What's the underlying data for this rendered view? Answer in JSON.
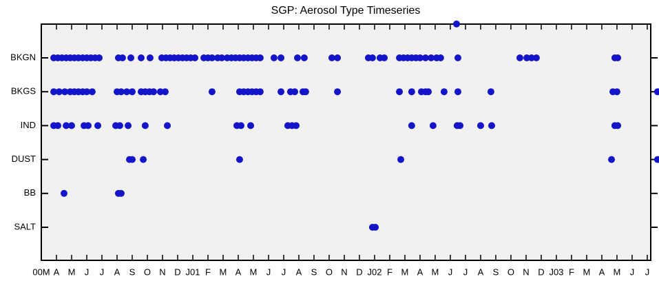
{
  "chart_data": {
    "type": "scatter",
    "title": "SGP: Aerosol Type Timeseries",
    "color": "#1414c8",
    "xlim": [
      2,
      42.23
    ],
    "xticks": [
      {
        "value": 2,
        "label": "00M"
      },
      {
        "value": 3,
        "label": "A"
      },
      {
        "value": 4,
        "label": "M"
      },
      {
        "value": 5,
        "label": "J"
      },
      {
        "value": 6,
        "label": "J"
      },
      {
        "value": 7,
        "label": "A"
      },
      {
        "value": 8,
        "label": "S"
      },
      {
        "value": 9,
        "label": "O"
      },
      {
        "value": 10,
        "label": "N"
      },
      {
        "value": 11,
        "label": "D"
      },
      {
        "value": 12,
        "label": "J01"
      },
      {
        "value": 13,
        "label": "F"
      },
      {
        "value": 14,
        "label": "M"
      },
      {
        "value": 15,
        "label": "A"
      },
      {
        "value": 16,
        "label": "M"
      },
      {
        "value": 17,
        "label": "J"
      },
      {
        "value": 18,
        "label": "J"
      },
      {
        "value": 19,
        "label": "A"
      },
      {
        "value": 20,
        "label": "S"
      },
      {
        "value": 21,
        "label": "O"
      },
      {
        "value": 22,
        "label": "N"
      },
      {
        "value": 23,
        "label": "D"
      },
      {
        "value": 24,
        "label": "J02"
      },
      {
        "value": 25,
        "label": "F"
      },
      {
        "value": 26,
        "label": "M"
      },
      {
        "value": 27,
        "label": "A"
      },
      {
        "value": 28,
        "label": "M"
      },
      {
        "value": 29,
        "label": "J"
      },
      {
        "value": 30,
        "label": "J"
      },
      {
        "value": 31,
        "label": "A"
      },
      {
        "value": 32,
        "label": "S"
      },
      {
        "value": 33,
        "label": "O"
      },
      {
        "value": 34,
        "label": "N"
      },
      {
        "value": 35,
        "label": "D"
      },
      {
        "value": 36,
        "label": "J03"
      },
      {
        "value": 37,
        "label": "F"
      },
      {
        "value": 38,
        "label": "M"
      },
      {
        "value": 39,
        "label": "A"
      },
      {
        "value": 40,
        "label": "M"
      },
      {
        "value": 41,
        "label": "J"
      },
      {
        "value": 42,
        "label": "J"
      }
    ],
    "rows": [
      {
        "name": null,
        "x": [
          29.41
        ]
      },
      {
        "name": "BKGN",
        "x": [
          2.82,
          3.09,
          3.36,
          3.64,
          3.91,
          4.18,
          4.45,
          4.73,
          5.0,
          5.27,
          5.55,
          5.82,
          7.09,
          7.36,
          7.91,
          8.59,
          9.18,
          9.95,
          10.23,
          10.5,
          10.77,
          11.05,
          11.32,
          11.59,
          11.86,
          12.14,
          12.73,
          13.0,
          13.27,
          13.64,
          13.91,
          14.27,
          14.55,
          14.82,
          15.09,
          15.36,
          15.64,
          15.91,
          16.18,
          16.45,
          17.36,
          17.82,
          18.91,
          19.36,
          21.18,
          21.55,
          23.59,
          23.86,
          24.36,
          24.64,
          25.64,
          25.91,
          26.18,
          26.45,
          26.73,
          27.0,
          27.36,
          27.73,
          28.09,
          28.36,
          29.5,
          33.59,
          34.05,
          34.36,
          34.68,
          39.86,
          40.05
        ]
      },
      {
        "name": "BKGS",
        "x": [
          2.82,
          3.18,
          3.55,
          3.91,
          4.18,
          4.45,
          4.73,
          5.0,
          5.36,
          7.0,
          7.27,
          7.64,
          8.0,
          8.59,
          8.86,
          9.14,
          9.41,
          9.86,
          10.18,
          13.27,
          15.09,
          15.36,
          15.64,
          15.91,
          16.18,
          16.45,
          17.82,
          18.45,
          18.73,
          19.27,
          19.45,
          21.55,
          25.64,
          26.45,
          27.09,
          27.36,
          27.55,
          28.59,
          29.5,
          31.68,
          39.73,
          40.0,
          42.68
        ]
      },
      {
        "name": "IND",
        "x": [
          2.82,
          3.09,
          3.64,
          4.0,
          4.82,
          5.09,
          5.73,
          6.91,
          7.18,
          7.73,
          8.86,
          10.32,
          14.91,
          15.18,
          15.82,
          18.27,
          18.55,
          18.82,
          26.45,
          27.86,
          29.45,
          29.64,
          31.0,
          31.73,
          39.86,
          40.05
        ]
      },
      {
        "name": "DUST",
        "x": [
          7.82,
          8.0,
          8.73,
          15.09,
          25.73,
          39.64,
          42.68
        ]
      },
      {
        "name": "BB",
        "x": [
          3.5,
          7.09,
          7.27
        ]
      },
      {
        "name": "SALT",
        "x": [
          23.86,
          24.05
        ]
      }
    ]
  }
}
